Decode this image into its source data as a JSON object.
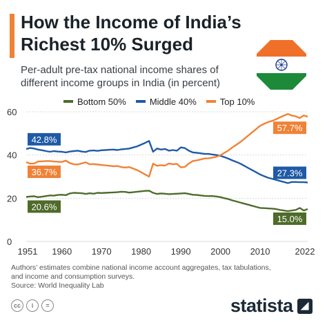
{
  "header": {
    "title": "How the Income of India’s Richest 10% Surged",
    "subtitle": "Per-adult pre-tax national income shares of different income groups in India (in percent)"
  },
  "flag_icon": "india-flag-icon",
  "colors": {
    "accent": "#f08236",
    "bottom50": "#4e6b2a",
    "middle40": "#1f5aa6",
    "top10": "#f08236",
    "grid": "#d9d9d9"
  },
  "chart_data": {
    "type": "line",
    "title": "",
    "xlabel": "",
    "ylabel": "",
    "ylim": [
      0,
      60
    ],
    "y_ticks": [
      "0",
      "20",
      "40",
      "60"
    ],
    "x_ticks": [
      "1951",
      "1960",
      "1970",
      "1980",
      "1990",
      "2000",
      "2010",
      "2022"
    ],
    "x_tick_values": [
      1951,
      1960,
      1970,
      1980,
      1990,
      2000,
      2010,
      2022
    ],
    "grid": true,
    "legend_placement": "top",
    "x": [
      1951,
      1952,
      1953,
      1954,
      1955,
      1956,
      1957,
      1958,
      1959,
      1960,
      1961,
      1962,
      1963,
      1964,
      1965,
      1966,
      1967,
      1968,
      1969,
      1970,
      1971,
      1972,
      1973,
      1974,
      1975,
      1976,
      1977,
      1978,
      1979,
      1980,
      1981,
      1982,
      1983,
      1984,
      1985,
      1986,
      1987,
      1988,
      1989,
      1990,
      1991,
      1992,
      1993,
      1994,
      1995,
      1996,
      1997,
      1998,
      1999,
      2000,
      2001,
      2002,
      2003,
      2004,
      2005,
      2006,
      2007,
      2008,
      2009,
      2010,
      2011,
      2012,
      2013,
      2014,
      2015,
      2016,
      2017,
      2018,
      2019,
      2020,
      2021,
      2022
    ],
    "series": [
      {
        "name": "Bottom 50%",
        "color": "#4e6b2a",
        "start_label": "20.6%",
        "end_label": "15.0%",
        "values": [
          20.6,
          20.8,
          20.9,
          20.5,
          20.7,
          21.0,
          21.3,
          21.2,
          21.5,
          21.6,
          21.4,
          22.2,
          22.5,
          22.4,
          22.3,
          22.0,
          22.3,
          22.1,
          22.5,
          22.4,
          22.5,
          22.6,
          22.7,
          22.8,
          23.0,
          22.9,
          22.6,
          22.8,
          23.0,
          23.2,
          23.4,
          23.5,
          22.5,
          22.0,
          22.2,
          22.1,
          21.9,
          22.0,
          22.1,
          22.2,
          22.3,
          22.0,
          21.6,
          21.5,
          21.3,
          21.1,
          21.0,
          21.0,
          20.8,
          20.5,
          20.0,
          19.6,
          19.0,
          18.5,
          18.0,
          17.5,
          17.0,
          16.5,
          16.0,
          15.5,
          15.4,
          15.3,
          15.2,
          15.0,
          14.6,
          14.3,
          14.0,
          14.3,
          14.6,
          15.5,
          14.3,
          15.0
        ]
      },
      {
        "name": "Middle 40%",
        "color": "#1f5aa6",
        "start_label": "42.8%",
        "end_label": "27.3%",
        "values": [
          42.8,
          43.2,
          43.0,
          42.5,
          42.2,
          41.8,
          41.5,
          41.8,
          41.6,
          41.5,
          41.2,
          41.6,
          41.8,
          42.0,
          41.6,
          41.4,
          42.0,
          42.1,
          41.9,
          42.2,
          42.3,
          42.4,
          42.5,
          42.3,
          42.6,
          42.8,
          43.0,
          43.5,
          44.0,
          44.8,
          45.6,
          46.5,
          41.5,
          43.0,
          42.5,
          42.8,
          42.0,
          42.3,
          42.0,
          43.5,
          43.2,
          42.0,
          41.2,
          41.0,
          40.8,
          40.5,
          40.5,
          40.2,
          40.0,
          39.6,
          39.0,
          38.3,
          37.5,
          36.8,
          36.0,
          35.0,
          34.0,
          33.0,
          32.0,
          31.0,
          30.2,
          29.5,
          29.0,
          28.5,
          28.0,
          27.5,
          27.0,
          27.5,
          27.5,
          27.4,
          27.4,
          27.3
        ]
      },
      {
        "name": "Top 10%",
        "color": "#f08236",
        "start_label": "36.7%",
        "end_label": "57.7%",
        "values": [
          36.7,
          36.0,
          36.1,
          37.0,
          37.1,
          37.2,
          37.2,
          37.0,
          36.9,
          36.8,
          37.4,
          36.3,
          35.7,
          35.6,
          36.1,
          36.6,
          35.7,
          35.8,
          35.6,
          35.4,
          35.2,
          35.0,
          34.8,
          34.9,
          34.4,
          34.2,
          34.4,
          33.7,
          33.0,
          32.0,
          31.0,
          30.0,
          36.0,
          35.0,
          35.3,
          35.1,
          36.1,
          35.7,
          35.9,
          34.3,
          34.5,
          36.0,
          37.2,
          37.5,
          37.9,
          38.4,
          38.5,
          38.8,
          39.2,
          39.9,
          41.0,
          42.1,
          43.5,
          44.7,
          46.0,
          47.5,
          49.0,
          50.5,
          52.0,
          53.5,
          54.4,
          55.2,
          55.8,
          56.5,
          57.4,
          58.2,
          59.0,
          58.2,
          57.9,
          57.1,
          58.3,
          57.7
        ]
      }
    ]
  },
  "footnote": {
    "line1": "Authors’ estimates combine national income account aggregates, tax tabulations,",
    "line2": "and income and consumption surveys.",
    "source": "Source: World Inequality Lab"
  },
  "footer": {
    "cc_icons": [
      "creative-commons-icon",
      "attribution-icon",
      "no-derivatives-icon"
    ],
    "brand": "statista"
  }
}
